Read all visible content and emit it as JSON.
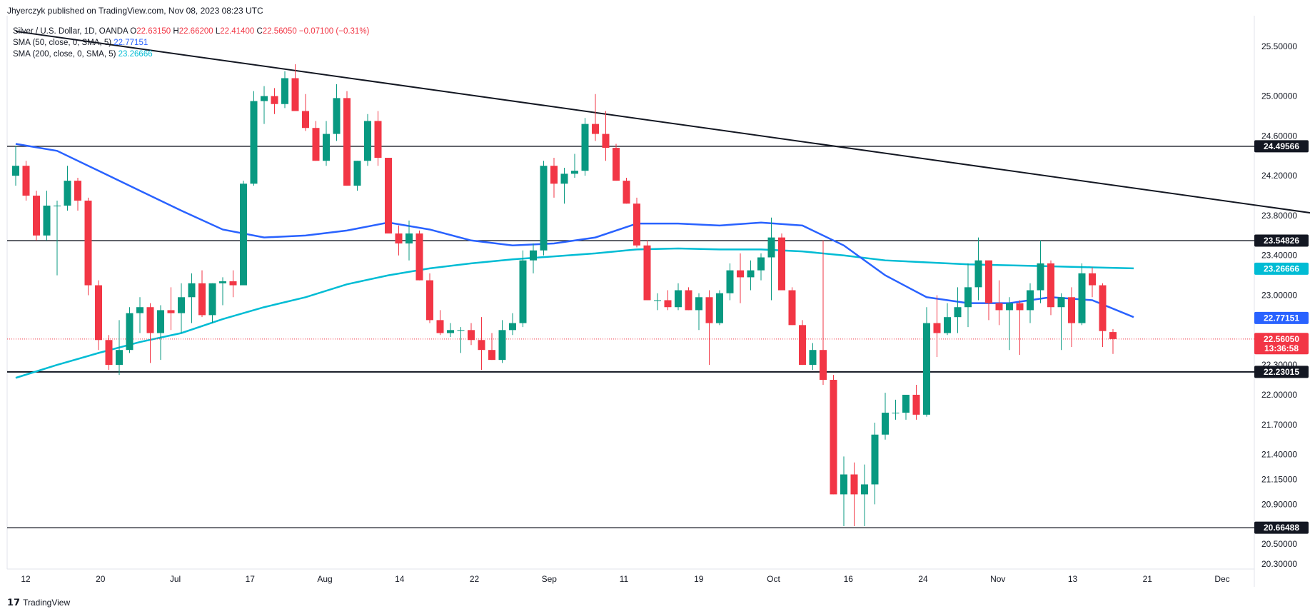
{
  "header": {
    "publish_line": "Jhyerczyk published on TradingView.com, Nov 08, 2023 08:23 UTC"
  },
  "legend": {
    "symbol": "Silver / U.S. Dollar, 1D, OANDA",
    "o_label": "O",
    "o_value": "22.63150",
    "h_label": "H",
    "h_value": "22.66200",
    "l_label": "L",
    "l_value": "22.41400",
    "c_label": "C",
    "c_value": "22.56050",
    "change": "−0.07100 (−0.31%)",
    "sma50_label": "SMA (50, close, 0, SMA, 5)",
    "sma50_value": "22.77151",
    "sma200_label": "SMA (200, close, 0, SMA, 5)",
    "sma200_value": "23.26666"
  },
  "footer": {
    "logo_text": "TradingView"
  },
  "colors": {
    "up": "#089981",
    "down": "#f23645",
    "sma50": "#2962ff",
    "sma200": "#00bcd4",
    "hline": "#131722"
  },
  "chart_data": {
    "type": "candlestick",
    "y_axis_ticks": [
      "25.50000",
      "25.00000",
      "24.60000",
      "24.20000",
      "23.80000",
      "23.40000",
      "23.00000",
      "22.30000",
      "22.00000",
      "21.70000",
      "21.40000",
      "21.15000",
      "20.90000",
      "20.50000",
      "20.30000"
    ],
    "x_axis_ticks": [
      "12",
      "20",
      "Jul",
      "17",
      "Aug",
      "14",
      "22",
      "Sep",
      "11",
      "19",
      "Oct",
      "16",
      "24",
      "Nov",
      "13",
      "21",
      "Dec"
    ],
    "ylim": [
      20.25,
      25.75
    ],
    "horizontal_levels": [
      {
        "value": 24.49566,
        "label": "24.49566"
      },
      {
        "value": 23.54826,
        "label": "23.54826"
      },
      {
        "value": 22.23015,
        "label": "22.23015"
      },
      {
        "value": 20.66488,
        "label": "20.66488"
      }
    ],
    "price_tags": [
      {
        "value": 23.26666,
        "label": "23.26666",
        "color": "#00bcd4"
      },
      {
        "value": 22.77151,
        "label": "22.77151",
        "color": "#2962ff"
      },
      {
        "value": 22.5605,
        "label": "22.56050",
        "color": "#f23645",
        "countdown": "13:36:58"
      }
    ],
    "trendline": {
      "start": [
        0,
        25.65
      ],
      "end": [
        129,
        23.77
      ]
    },
    "sma50": [
      [
        0,
        24.52
      ],
      [
        4,
        24.45
      ],
      [
        8,
        24.25
      ],
      [
        12,
        24.05
      ],
      [
        16,
        23.85
      ],
      [
        20,
        23.66
      ],
      [
        24,
        23.58
      ],
      [
        28,
        23.6
      ],
      [
        32,
        23.65
      ],
      [
        36,
        23.73
      ],
      [
        40,
        23.66
      ],
      [
        44,
        23.55
      ],
      [
        48,
        23.5
      ],
      [
        52,
        23.52
      ],
      [
        56,
        23.58
      ],
      [
        60,
        23.72
      ],
      [
        64,
        23.72
      ],
      [
        68,
        23.7
      ],
      [
        72,
        23.73
      ],
      [
        76,
        23.7
      ],
      [
        80,
        23.5
      ],
      [
        84,
        23.2
      ],
      [
        88,
        22.98
      ],
      [
        92,
        22.92
      ],
      [
        96,
        22.92
      ],
      [
        100,
        22.98
      ],
      [
        104,
        22.95
      ],
      [
        108,
        22.78
      ]
    ],
    "sma200": [
      [
        0,
        22.17
      ],
      [
        4,
        22.3
      ],
      [
        8,
        22.42
      ],
      [
        12,
        22.53
      ],
      [
        16,
        22.62
      ],
      [
        20,
        22.76
      ],
      [
        24,
        22.88
      ],
      [
        28,
        22.98
      ],
      [
        32,
        23.11
      ],
      [
        36,
        23.2
      ],
      [
        40,
        23.27
      ],
      [
        44,
        23.32
      ],
      [
        48,
        23.36
      ],
      [
        52,
        23.39
      ],
      [
        56,
        23.42
      ],
      [
        60,
        23.46
      ],
      [
        64,
        23.47
      ],
      [
        68,
        23.46
      ],
      [
        72,
        23.46
      ],
      [
        76,
        23.44
      ],
      [
        80,
        23.4
      ],
      [
        84,
        23.35
      ],
      [
        88,
        23.33
      ],
      [
        92,
        23.31
      ],
      [
        96,
        23.3
      ],
      [
        100,
        23.29
      ],
      [
        104,
        23.28
      ],
      [
        108,
        23.27
      ]
    ],
    "candles": [
      [
        24.2,
        24.5,
        24.1,
        24.3
      ],
      [
        24.3,
        24.35,
        23.95,
        24.0
      ],
      [
        24.0,
        24.05,
        23.55,
        23.6
      ],
      [
        23.6,
        24.05,
        23.55,
        23.9
      ],
      [
        23.9,
        23.95,
        23.2,
        23.9
      ],
      [
        23.9,
        24.3,
        23.85,
        24.15
      ],
      [
        24.15,
        24.18,
        23.85,
        23.95
      ],
      [
        23.95,
        23.98,
        23.0,
        23.1
      ],
      [
        23.1,
        23.15,
        22.45,
        22.55
      ],
      [
        22.55,
        22.6,
        22.25,
        22.3
      ],
      [
        22.3,
        22.75,
        22.2,
        22.45
      ],
      [
        22.45,
        22.88,
        22.42,
        22.82
      ],
      [
        22.82,
        22.98,
        22.62,
        22.88
      ],
      [
        22.88,
        22.92,
        22.32,
        22.62
      ],
      [
        22.62,
        22.9,
        22.35,
        22.85
      ],
      [
        22.85,
        23.08,
        22.65,
        22.82
      ],
      [
        22.82,
        23.12,
        22.62,
        22.98
      ],
      [
        22.98,
        23.22,
        22.72,
        23.12
      ],
      [
        23.12,
        23.25,
        22.78,
        22.8
      ],
      [
        22.8,
        23.12,
        22.72,
        23.12
      ],
      [
        23.12,
        23.18,
        22.9,
        23.14
      ],
      [
        23.14,
        23.25,
        22.98,
        23.1
      ],
      [
        23.1,
        24.15,
        23.1,
        24.12
      ],
      [
        24.12,
        25.05,
        24.1,
        24.95
      ],
      [
        24.95,
        25.1,
        24.72,
        25.0
      ],
      [
        25.0,
        25.08,
        24.82,
        24.92
      ],
      [
        24.92,
        25.25,
        24.88,
        25.18
      ],
      [
        25.18,
        25.32,
        24.85,
        24.85
      ],
      [
        24.85,
        25.02,
        24.65,
        24.68
      ],
      [
        24.68,
        24.75,
        24.35,
        24.35
      ],
      [
        24.35,
        24.75,
        24.3,
        24.62
      ],
      [
        24.62,
        25.12,
        24.55,
        24.98
      ],
      [
        24.98,
        25.05,
        24.1,
        24.1
      ],
      [
        24.1,
        24.35,
        24.05,
        24.35
      ],
      [
        24.35,
        24.82,
        24.3,
        24.75
      ],
      [
        24.75,
        24.85,
        24.3,
        24.38
      ],
      [
        24.38,
        24.38,
        23.62,
        23.62
      ],
      [
        23.62,
        23.7,
        23.4,
        23.52
      ],
      [
        23.52,
        23.75,
        23.35,
        23.62
      ],
      [
        23.62,
        23.65,
        23.15,
        23.15
      ],
      [
        23.15,
        23.22,
        22.72,
        22.75
      ],
      [
        22.75,
        22.85,
        22.6,
        22.62
      ],
      [
        22.62,
        22.72,
        22.58,
        22.65
      ],
      [
        22.65,
        22.68,
        22.42,
        22.65
      ],
      [
        22.65,
        22.72,
        22.5,
        22.55
      ],
      [
        22.55,
        22.78,
        22.25,
        22.45
      ],
      [
        22.45,
        22.62,
        22.35,
        22.35
      ],
      [
        22.35,
        22.75,
        22.32,
        22.65
      ],
      [
        22.65,
        22.82,
        22.6,
        22.72
      ],
      [
        22.72,
        23.45,
        22.68,
        23.35
      ],
      [
        23.35,
        23.52,
        23.22,
        23.45
      ],
      [
        23.45,
        24.35,
        23.4,
        24.3
      ],
      [
        24.3,
        24.38,
        23.98,
        24.12
      ],
      [
        24.12,
        24.28,
        23.92,
        24.22
      ],
      [
        24.22,
        24.42,
        24.18,
        24.25
      ],
      [
        24.25,
        24.78,
        24.2,
        24.72
      ],
      [
        24.72,
        25.02,
        24.55,
        24.62
      ],
      [
        24.62,
        24.85,
        24.35,
        24.48
      ],
      [
        24.48,
        24.52,
        24.15,
        24.15
      ],
      [
        24.15,
        24.18,
        23.92,
        23.92
      ],
      [
        23.92,
        23.98,
        23.48,
        23.5
      ],
      [
        23.5,
        23.55,
        22.95,
        22.95
      ],
      [
        22.95,
        23.02,
        22.85,
        22.95
      ],
      [
        22.95,
        23.05,
        22.85,
        22.88
      ],
      [
        22.88,
        23.12,
        22.85,
        23.05
      ],
      [
        23.05,
        23.08,
        22.85,
        22.85
      ],
      [
        22.85,
        23.02,
        22.65,
        22.98
      ],
      [
        22.98,
        23.05,
        22.3,
        22.72
      ],
      [
        22.72,
        23.05,
        22.7,
        23.02
      ],
      [
        23.02,
        23.32,
        22.95,
        23.25
      ],
      [
        23.25,
        23.42,
        22.92,
        23.18
      ],
      [
        23.18,
        23.35,
        23.05,
        23.25
      ],
      [
        23.25,
        23.42,
        23.15,
        23.38
      ],
      [
        23.38,
        23.78,
        22.95,
        23.58
      ],
      [
        23.58,
        23.62,
        23.05,
        23.05
      ],
      [
        23.05,
        23.08,
        22.7,
        22.7
      ],
      [
        22.7,
        22.75,
        22.3,
        22.3
      ],
      [
        22.3,
        22.52,
        22.25,
        22.45
      ],
      [
        22.45,
        23.55,
        22.1,
        22.15
      ],
      [
        22.15,
        22.2,
        21.0,
        21.0
      ],
      [
        21.0,
        21.38,
        20.68,
        21.2
      ],
      [
        21.2,
        21.32,
        20.68,
        21.0
      ],
      [
        21.0,
        21.3,
        20.68,
        21.1
      ],
      [
        21.1,
        21.72,
        20.9,
        21.6
      ],
      [
        21.6,
        22.02,
        21.55,
        21.82
      ],
      [
        21.82,
        21.95,
        21.75,
        21.82
      ],
      [
        21.82,
        22.0,
        21.75,
        22.0
      ],
      [
        22.0,
        22.1,
        21.75,
        21.8
      ],
      [
        21.8,
        22.88,
        21.78,
        22.72
      ],
      [
        22.72,
        23.0,
        22.38,
        22.62
      ],
      [
        22.62,
        22.92,
        22.6,
        22.78
      ],
      [
        22.78,
        23.08,
        22.62,
        22.88
      ],
      [
        22.88,
        23.32,
        22.68,
        23.08
      ],
      [
        23.08,
        23.58,
        22.95,
        23.35
      ],
      [
        23.35,
        23.35,
        22.75,
        22.92
      ],
      [
        22.92,
        23.15,
        22.7,
        22.85
      ],
      [
        22.85,
        22.98,
        22.45,
        22.92
      ],
      [
        22.92,
        22.95,
        22.4,
        22.85
      ],
      [
        22.85,
        23.12,
        22.72,
        23.05
      ],
      [
        23.05,
        23.55,
        22.92,
        23.32
      ],
      [
        23.32,
        23.35,
        22.8,
        22.88
      ],
      [
        22.88,
        23.02,
        22.45,
        22.98
      ],
      [
        22.98,
        23.08,
        22.48,
        22.72
      ],
      [
        22.72,
        23.32,
        22.7,
        23.22
      ],
      [
        23.22,
        23.28,
        22.98,
        23.1
      ],
      [
        23.1,
        23.12,
        22.48,
        22.64
      ],
      [
        22.63,
        22.66,
        22.41,
        22.56
      ]
    ]
  }
}
